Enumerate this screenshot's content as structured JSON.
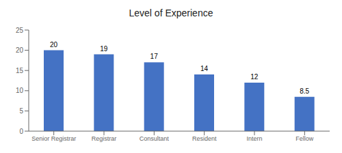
{
  "chart_data": {
    "type": "bar",
    "title": "Level of Experience",
    "categories": [
      "Senior Registrar",
      "Registrar",
      "Consultant",
      "Resident",
      "Intern",
      "Fellow"
    ],
    "values": [
      20,
      19,
      17,
      14,
      12,
      8.5
    ],
    "color": "#4472C4",
    "ylim": [
      0,
      25
    ],
    "yticks": [
      0,
      5,
      10,
      15,
      20,
      25
    ],
    "grid": false,
    "data_labels": true
  }
}
